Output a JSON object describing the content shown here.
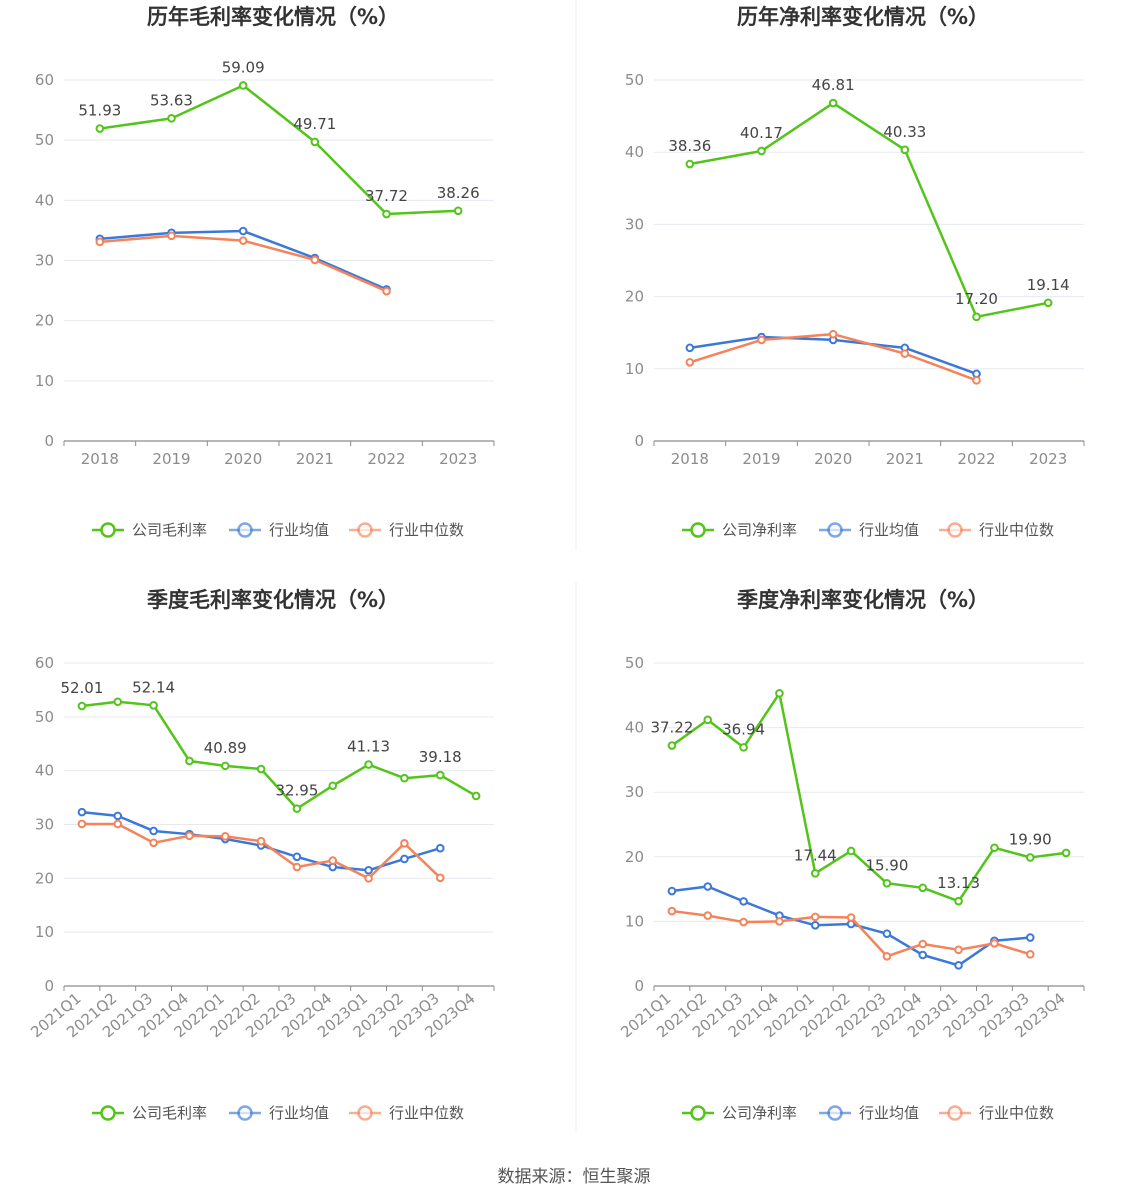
{
  "source_text": "数据来源：恒生聚源",
  "legend_colors": {
    "company": "#52c41a",
    "avg": "#3c78d8",
    "median": "#f4835a"
  },
  "chart_data": [
    {
      "type": "line",
      "title": "历年毛利率变化情况（%）",
      "categories": [
        "2018",
        "2019",
        "2020",
        "2021",
        "2022",
        "2023"
      ],
      "ylim": [
        0,
        60
      ],
      "yticks": [
        0,
        10,
        20,
        30,
        40,
        50,
        60
      ],
      "series": [
        {
          "name": "公司毛利率",
          "key": "company",
          "values": [
            51.93,
            53.63,
            59.09,
            49.71,
            37.72,
            38.26
          ],
          "labels": [
            "51.93",
            "53.63",
            "59.09",
            "49.71",
            "37.72",
            "38.26"
          ]
        },
        {
          "name": "行业均值",
          "key": "avg",
          "values": [
            33.6,
            34.6,
            34.9,
            30.4,
            25.2,
            null
          ]
        },
        {
          "name": "行业中位数",
          "key": "median",
          "values": [
            33.1,
            34.1,
            33.3,
            30.1,
            24.9,
            null
          ]
        }
      ]
    },
    {
      "type": "line",
      "title": "历年净利率变化情况（%）",
      "categories": [
        "2018",
        "2019",
        "2020",
        "2021",
        "2022",
        "2023"
      ],
      "ylim": [
        0,
        50
      ],
      "yticks": [
        0,
        10,
        20,
        30,
        40,
        50
      ],
      "series": [
        {
          "name": "公司净利率",
          "key": "company",
          "values": [
            38.36,
            40.17,
            46.81,
            40.33,
            17.2,
            19.14
          ],
          "labels": [
            "38.36",
            "40.17",
            "46.81",
            "40.33",
            "17.20",
            "19.14"
          ]
        },
        {
          "name": "行业均值",
          "key": "avg",
          "values": [
            12.9,
            14.4,
            14.0,
            12.9,
            9.3,
            null
          ]
        },
        {
          "name": "行业中位数",
          "key": "median",
          "values": [
            10.9,
            14.0,
            14.8,
            12.1,
            8.4,
            null
          ]
        }
      ]
    },
    {
      "type": "line",
      "title": "季度毛利率变化情况（%）",
      "categories": [
        "2021Q1",
        "2021Q2",
        "2021Q3",
        "2021Q4",
        "2022Q1",
        "2022Q2",
        "2022Q3",
        "2022Q4",
        "2023Q1",
        "2023Q2",
        "2023Q3",
        "2023Q4"
      ],
      "ylim": [
        0,
        60
      ],
      "yticks": [
        0,
        10,
        20,
        30,
        40,
        50,
        60
      ],
      "series": [
        {
          "name": "公司毛利率",
          "key": "company",
          "values": [
            52.01,
            52.8,
            52.14,
            41.8,
            40.89,
            40.3,
            32.95,
            37.2,
            41.13,
            38.6,
            39.18,
            35.3
          ],
          "labels": [
            "52.01",
            "",
            "52.14",
            "",
            "40.89",
            "",
            "32.95",
            "",
            "41.13",
            "",
            "39.18",
            ""
          ]
        },
        {
          "name": "行业均值",
          "key": "avg",
          "values": [
            32.3,
            31.6,
            28.8,
            28.2,
            27.3,
            26.1,
            24.0,
            22.1,
            21.5,
            23.6,
            25.6,
            null
          ]
        },
        {
          "name": "行业中位数",
          "key": "median",
          "values": [
            30.1,
            30.1,
            26.6,
            27.9,
            27.8,
            26.9,
            22.1,
            23.3,
            20.0,
            26.5,
            20.1,
            null
          ]
        }
      ]
    },
    {
      "type": "line",
      "title": "季度净利率变化情况（%）",
      "categories": [
        "2021Q1",
        "2021Q2",
        "2021Q3",
        "2021Q4",
        "2022Q1",
        "2022Q2",
        "2022Q3",
        "2022Q4",
        "2023Q1",
        "2023Q2",
        "2023Q3",
        "2023Q4"
      ],
      "ylim": [
        0,
        50
      ],
      "yticks": [
        0,
        10,
        20,
        30,
        40,
        50
      ],
      "series": [
        {
          "name": "公司净利率",
          "key": "company",
          "values": [
            37.22,
            41.2,
            36.94,
            45.3,
            17.44,
            20.9,
            15.9,
            15.2,
            13.13,
            21.4,
            19.9,
            20.6
          ],
          "labels": [
            "37.22",
            "",
            "36.94",
            "",
            "17.44",
            "",
            "15.90",
            "",
            "13.13",
            "",
            "19.90",
            ""
          ]
        },
        {
          "name": "行业均值",
          "key": "avg",
          "values": [
            14.7,
            15.4,
            13.1,
            10.9,
            9.4,
            9.6,
            8.1,
            4.8,
            3.2,
            7.0,
            7.5,
            null
          ]
        },
        {
          "name": "行业中位数",
          "key": "median",
          "values": [
            11.6,
            10.9,
            9.9,
            10.0,
            10.7,
            10.6,
            4.6,
            6.5,
            5.6,
            6.6,
            4.9,
            null
          ]
        }
      ]
    }
  ]
}
